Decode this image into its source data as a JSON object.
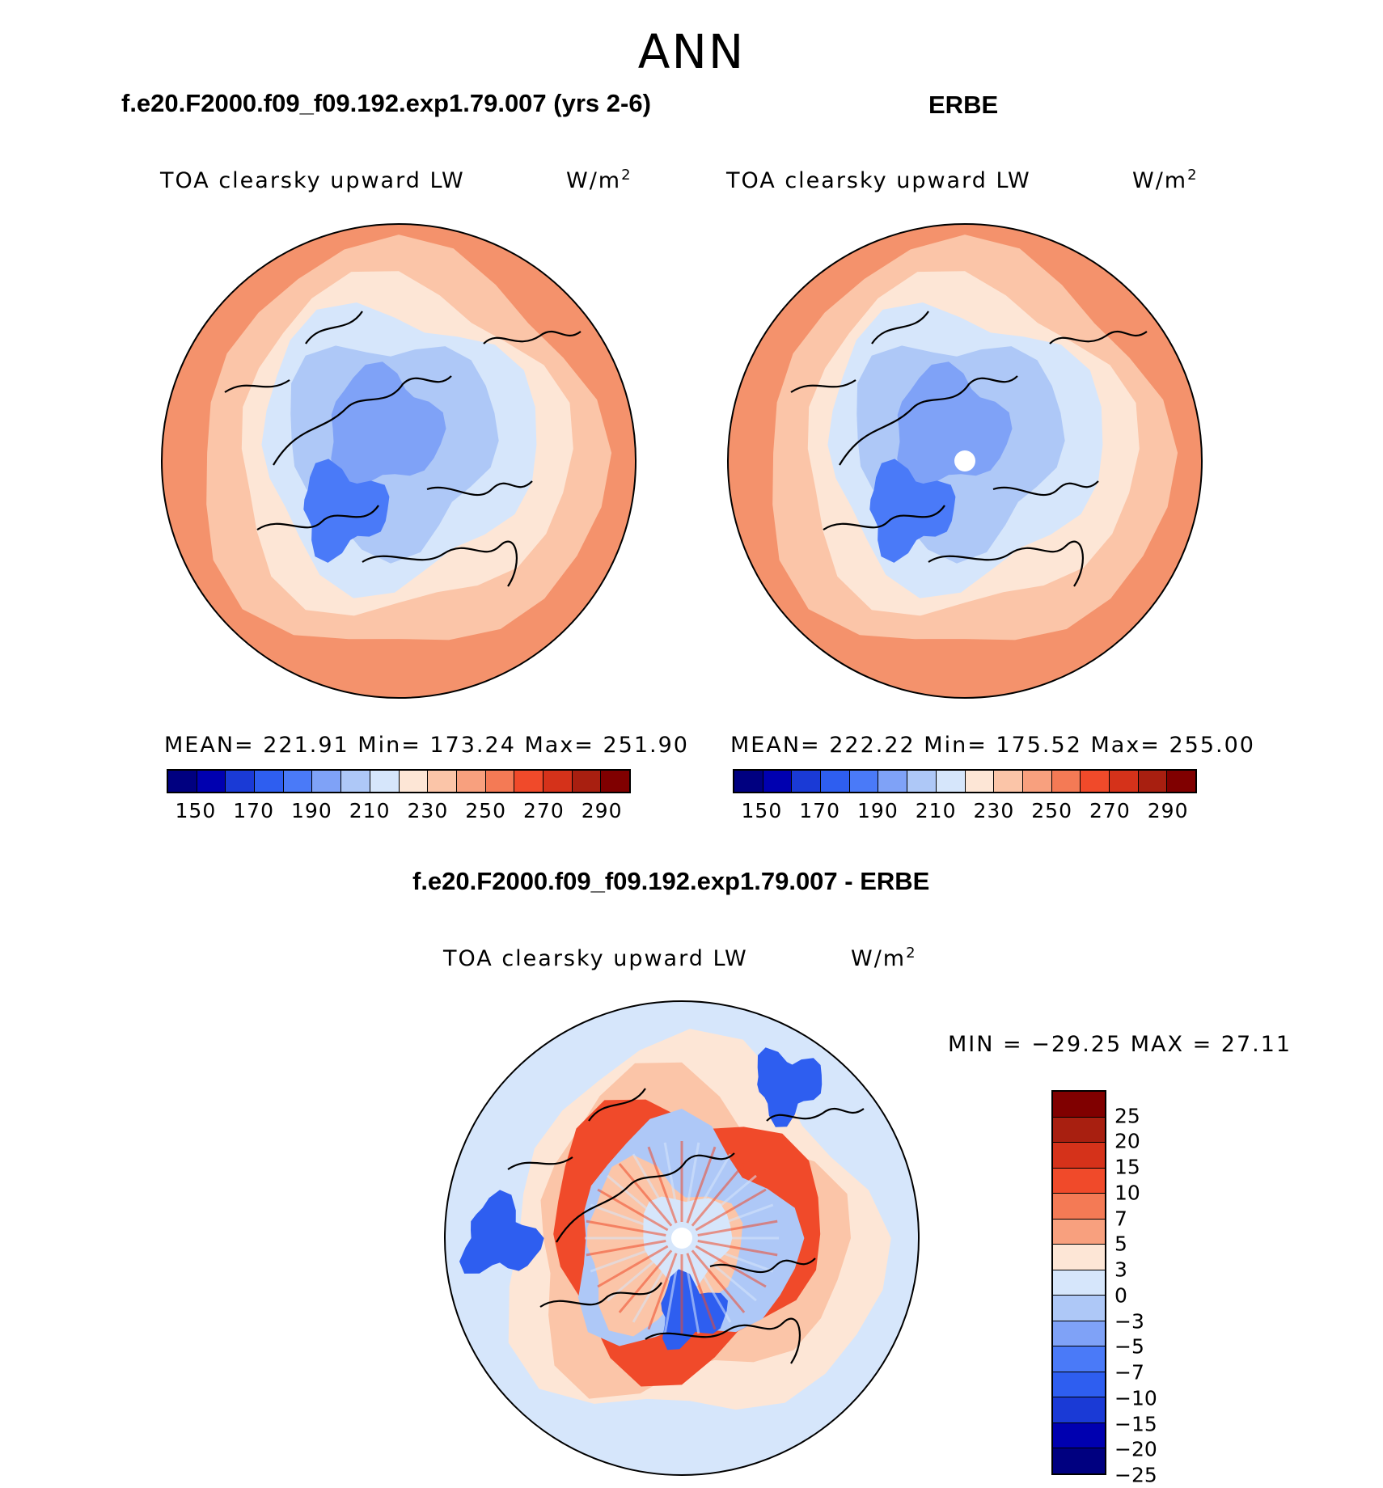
{
  "figure": {
    "season": "ANN"
  },
  "panels": [
    {
      "case_title": "f.e20.F2000.f09_f09.192.exp1.79.007 (yrs 2-6)",
      "variable": "TOA clearsky upward LW",
      "units": "W/m",
      "units_sup": "2",
      "stats": "MEAN= 221.91   Min= 173.24   Max= 251.90",
      "has_pole_hole": false
    },
    {
      "case_title": "ERBE",
      "variable": "TOA clearsky upward LW",
      "units": "W/m",
      "units_sup": "2",
      "stats": "MEAN= 222.22   Min= 175.52   Max= 255.00",
      "has_pole_hole": true
    },
    {
      "case_title": "f.e20.F2000.f09_f09.192.exp1.79.007 - ERBE",
      "variable": "TOA clearsky upward LW",
      "units": "W/m",
      "units_sup": "2",
      "stats": "MIN =  −29.25  MAX =   27.11",
      "has_pole_hole": true
    }
  ],
  "colorbar_abs": {
    "colors": [
      "#000080",
      "#0000b0",
      "#1a3ad6",
      "#2e5ef0",
      "#4a7af8",
      "#7fa2f7",
      "#aec8f7",
      "#d6e6fb",
      "#fde6d6",
      "#fbc5a8",
      "#f8a07e",
      "#f47a55",
      "#f04a2a",
      "#d5321a",
      "#a81f10",
      "#800000"
    ],
    "tick_labels": [
      "150",
      "170",
      "190",
      "210",
      "230",
      "250",
      "270",
      "290"
    ]
  },
  "colorbar_diff": {
    "colors": [
      "#800000",
      "#a81f10",
      "#d5321a",
      "#f04a2a",
      "#f47a55",
      "#f8a07e",
      "#fde6d6",
      "#d6e6fb",
      "#aec8f7",
      "#7fa2f7",
      "#4a7af8",
      "#2e5ef0",
      "#1a3ad6",
      "#0000b0",
      "#000080"
    ],
    "tick_labels": [
      "25",
      "20",
      "15",
      "10",
      "7",
      "5",
      "3",
      "0",
      "−3",
      "−5",
      "−7",
      "−10",
      "−15",
      "−20",
      "−25"
    ]
  },
  "map_palette": {
    "warm_outer": "#f4926c",
    "warm_mid": "#fbc5a8",
    "warm_light": "#fde6d6",
    "cold_light": "#d6e6fb",
    "cold_mid": "#aec8f7",
    "cold_deep": "#7fa2f7",
    "cold_core": "#4a7af8",
    "diff_red": "#f04a2a",
    "diff_blue": "#2e5ef0"
  }
}
